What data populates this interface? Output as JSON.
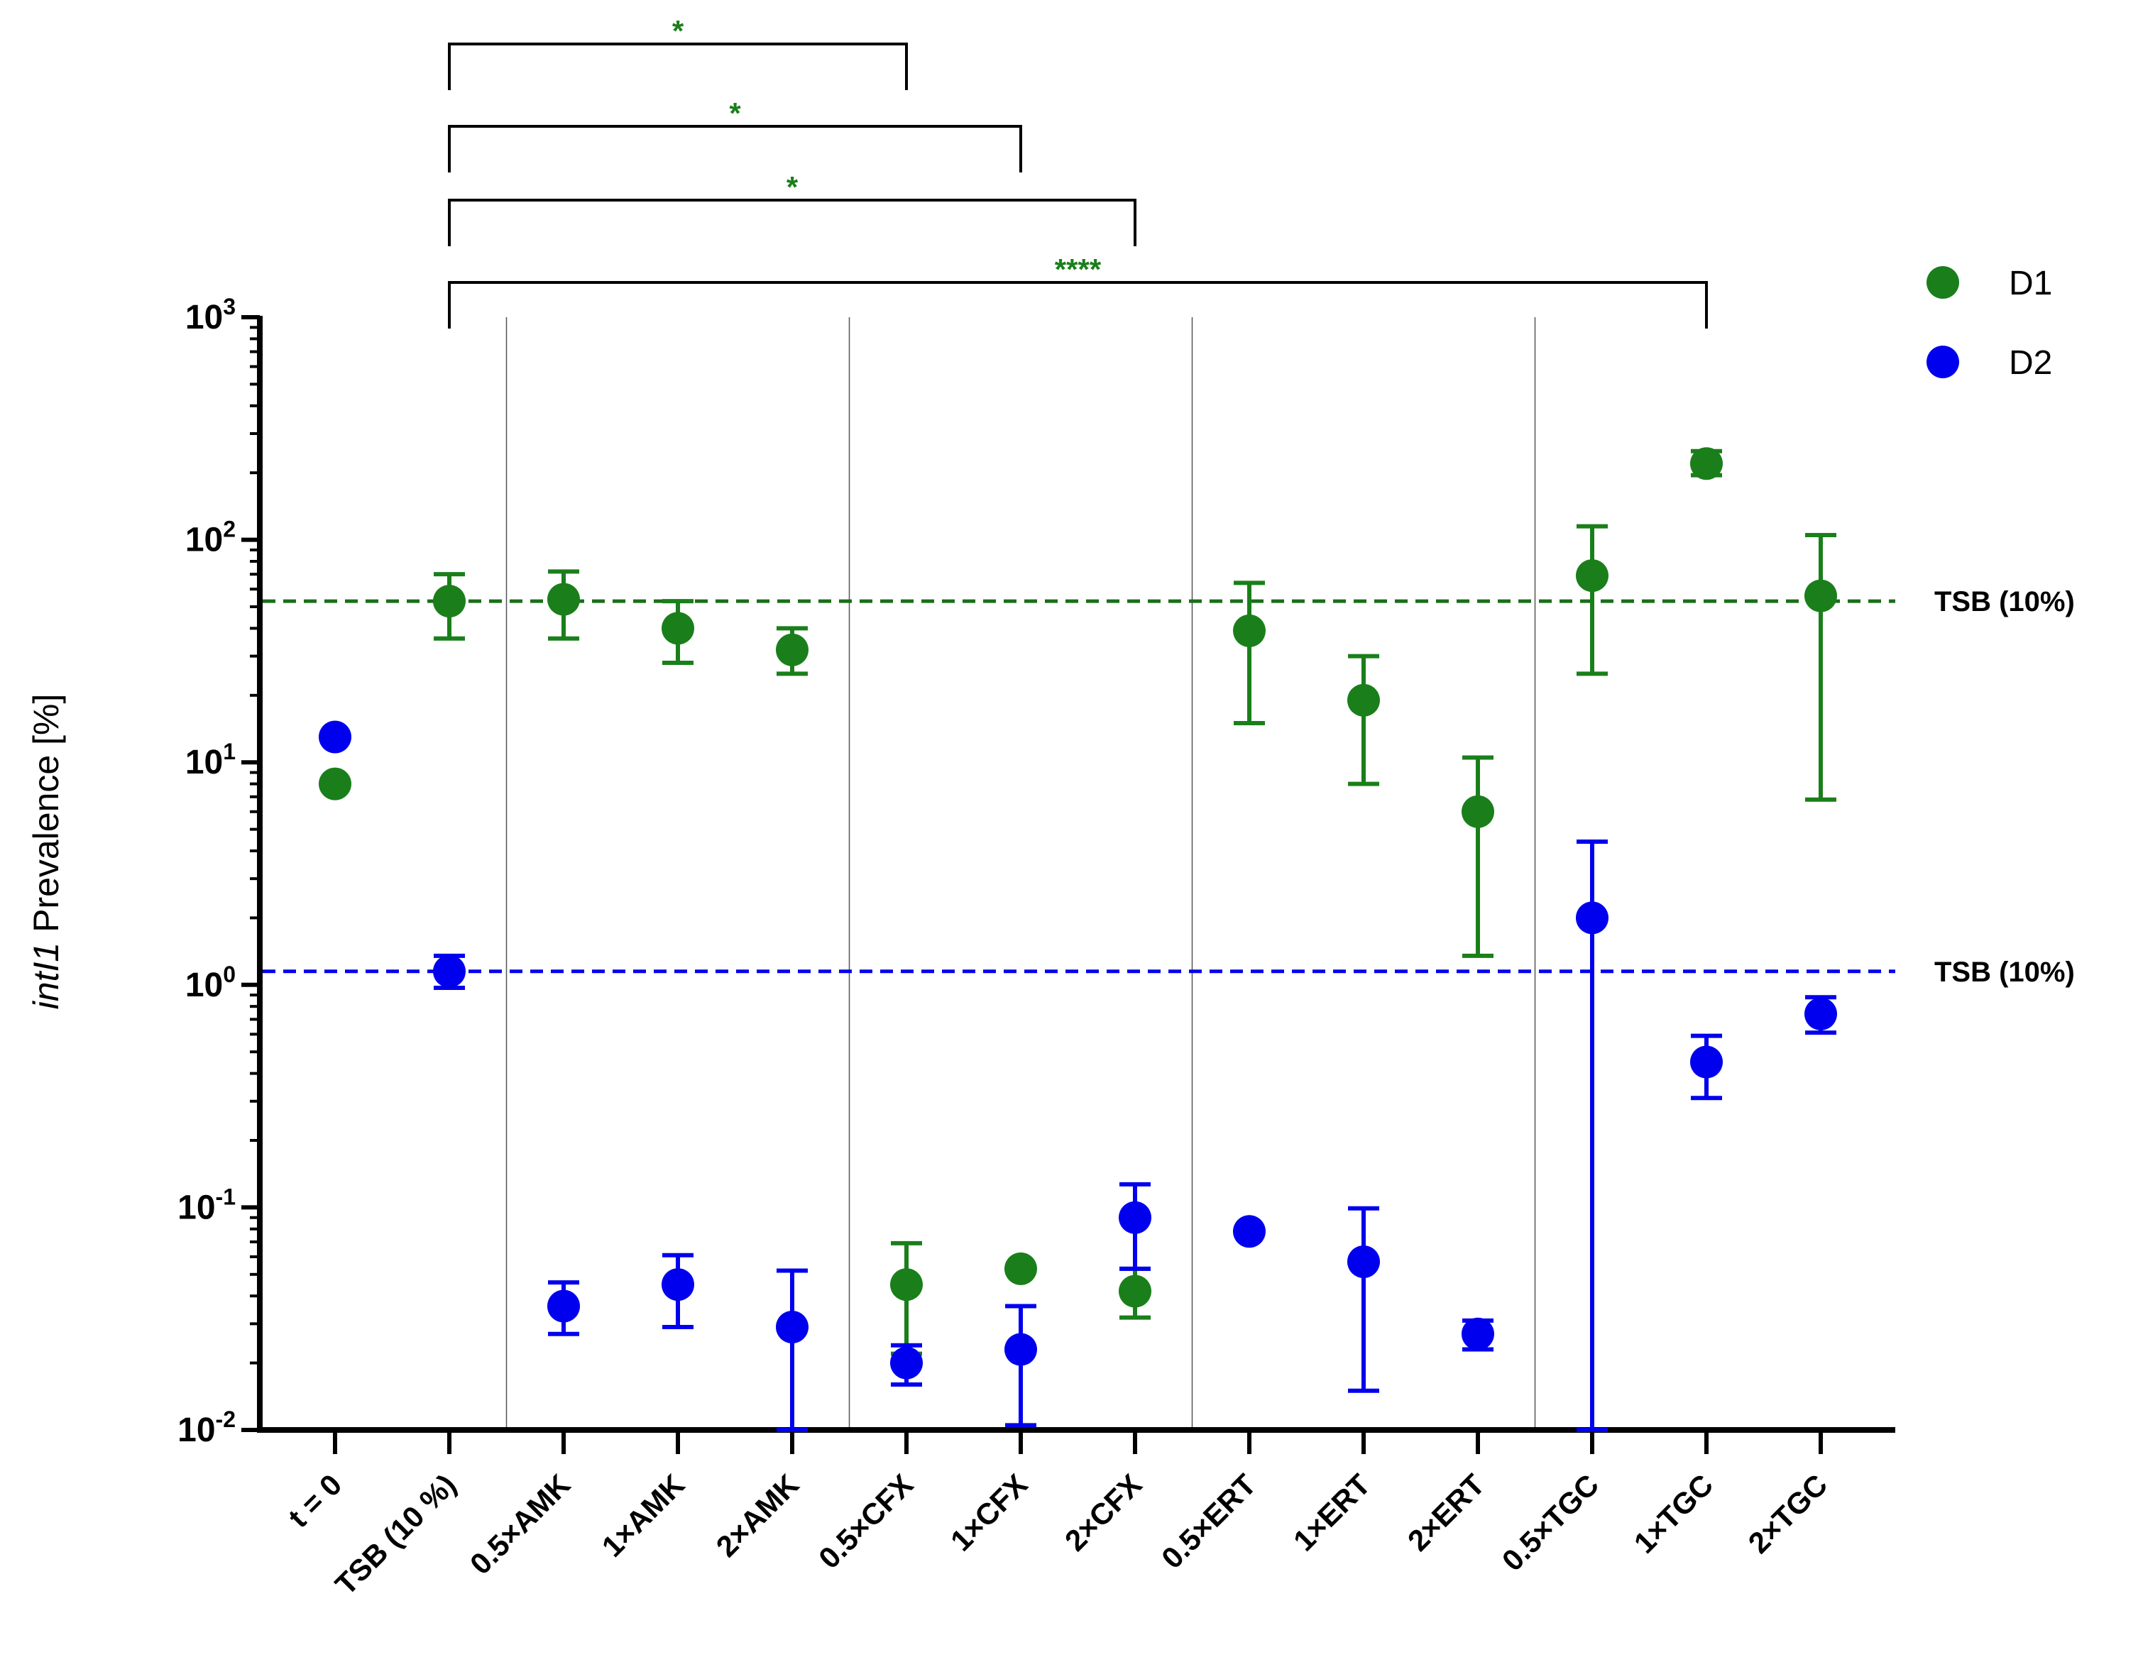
{
  "chart_data": {
    "type": "scatter",
    "ylabel_italic": "intI1",
    "ylabel_rest": " Prevalence [%]",
    "yscale": "log",
    "ylim": [
      0.01,
      1000
    ],
    "yticks": [
      {
        "value": 1000,
        "base": "10",
        "exp": "3"
      },
      {
        "value": 100,
        "base": "10",
        "exp": "2"
      },
      {
        "value": 10,
        "base": "10",
        "exp": "1"
      },
      {
        "value": 1,
        "base": "10",
        "exp": "0"
      },
      {
        "value": 0.1,
        "base": "10",
        "exp": "-1"
      },
      {
        "value": 0.01,
        "base": "10",
        "exp": "-2"
      }
    ],
    "categories": [
      "t = 0",
      "TSB (10 %)",
      "0.5×AMK",
      "1×AMK",
      "2×AMK",
      "0.5×CFX",
      "1×CFX",
      "2×CFX",
      "0.5×ERT",
      "1×ERT",
      "2×ERT",
      "0.5×TGC",
      "1×TGC",
      "2×TGC"
    ],
    "group_separators_after_index": [
      1,
      4,
      7,
      10
    ],
    "series": [
      {
        "name": "D1",
        "color": "#1a7f1a",
        "points": [
          {
            "category": "t = 0",
            "y": 8,
            "lo": null,
            "hi": null
          },
          {
            "category": "TSB (10 %)",
            "y": 53,
            "lo": 36,
            "hi": 70
          },
          {
            "category": "0.5×AMK",
            "y": 54,
            "lo": 36,
            "hi": 72
          },
          {
            "category": "1×AMK",
            "y": 40,
            "lo": 28,
            "hi": 53
          },
          {
            "category": "2×AMK",
            "y": 32,
            "lo": 25,
            "hi": 40
          },
          {
            "category": "0.5×CFX",
            "y": 0.045,
            "lo": 0.022,
            "hi": 0.069
          },
          {
            "category": "1×CFX",
            "y": 0.053,
            "lo": null,
            "hi": null
          },
          {
            "category": "2×CFX",
            "y": 0.042,
            "lo": 0.032,
            "hi": 0.053
          },
          {
            "category": "0.5×ERT",
            "y": 39,
            "lo": 15,
            "hi": 64
          },
          {
            "category": "1×ERT",
            "y": 19,
            "lo": 8,
            "hi": 30
          },
          {
            "category": "2×ERT",
            "y": 6,
            "lo": 1.35,
            "hi": 10.5
          },
          {
            "category": "0.5×TGC",
            "y": 69,
            "lo": 25,
            "hi": 115
          },
          {
            "category": "1×TGC",
            "y": 220,
            "lo": 195,
            "hi": 250
          },
          {
            "category": "2×TGC",
            "y": 56,
            "lo": 6.8,
            "hi": 105
          }
        ]
      },
      {
        "name": "D2",
        "color": "#0000ee",
        "points": [
          {
            "category": "t = 0",
            "y": 13,
            "lo": null,
            "hi": null
          },
          {
            "category": "TSB (10 %)",
            "y": 1.15,
            "lo": 0.97,
            "hi": 1.35
          },
          {
            "category": "0.5×AMK",
            "y": 0.036,
            "lo": 0.027,
            "hi": 0.046
          },
          {
            "category": "1×AMK",
            "y": 0.045,
            "lo": 0.029,
            "hi": 0.061
          },
          {
            "category": "2×AMK",
            "y": 0.029,
            "lo": 0.01,
            "hi": 0.052
          },
          {
            "category": "0.5×CFX",
            "y": 0.02,
            "lo": 0.016,
            "hi": 0.024
          },
          {
            "category": "1×CFX",
            "y": 0.023,
            "lo": 0.0105,
            "hi": 0.036
          },
          {
            "category": "2×CFX",
            "y": 0.09,
            "lo": 0.053,
            "hi": 0.127
          },
          {
            "category": "0.5×ERT",
            "y": 0.078,
            "lo": null,
            "hi": null
          },
          {
            "category": "1×ERT",
            "y": 0.057,
            "lo": 0.015,
            "hi": 0.099
          },
          {
            "category": "2×ERT",
            "y": 0.027,
            "lo": 0.023,
            "hi": 0.031
          },
          {
            "category": "0.5×TGC",
            "y": 2.0,
            "lo": 0.01,
            "hi": 4.4
          },
          {
            "category": "1×TGC",
            "y": 0.45,
            "lo": 0.31,
            "hi": 0.59
          },
          {
            "category": "2×TGC",
            "y": 0.74,
            "lo": 0.61,
            "hi": 0.88
          }
        ]
      }
    ],
    "reference_lines": [
      {
        "series": "D1",
        "y": 53,
        "label": "TSB (10%)",
        "color": "#1a6e1a"
      },
      {
        "series": "D2",
        "y": 1.15,
        "label": "TSB (10%)",
        "color": "#0000ee"
      }
    ],
    "significance": [
      {
        "from": "TSB (10 %)",
        "to": "0.5×CFX",
        "label": "*"
      },
      {
        "from": "TSB (10 %)",
        "to": "1×CFX",
        "label": "*"
      },
      {
        "from": "TSB (10 %)",
        "to": "2×CFX",
        "label": "*"
      },
      {
        "from": "TSB (10 %)",
        "to": "1×TGC",
        "label": "****"
      }
    ],
    "legend": [
      {
        "name": "D1",
        "color": "#1a7f1a"
      },
      {
        "name": "D2",
        "color": "#0000ee"
      }
    ],
    "legend_position": "top-right"
  }
}
